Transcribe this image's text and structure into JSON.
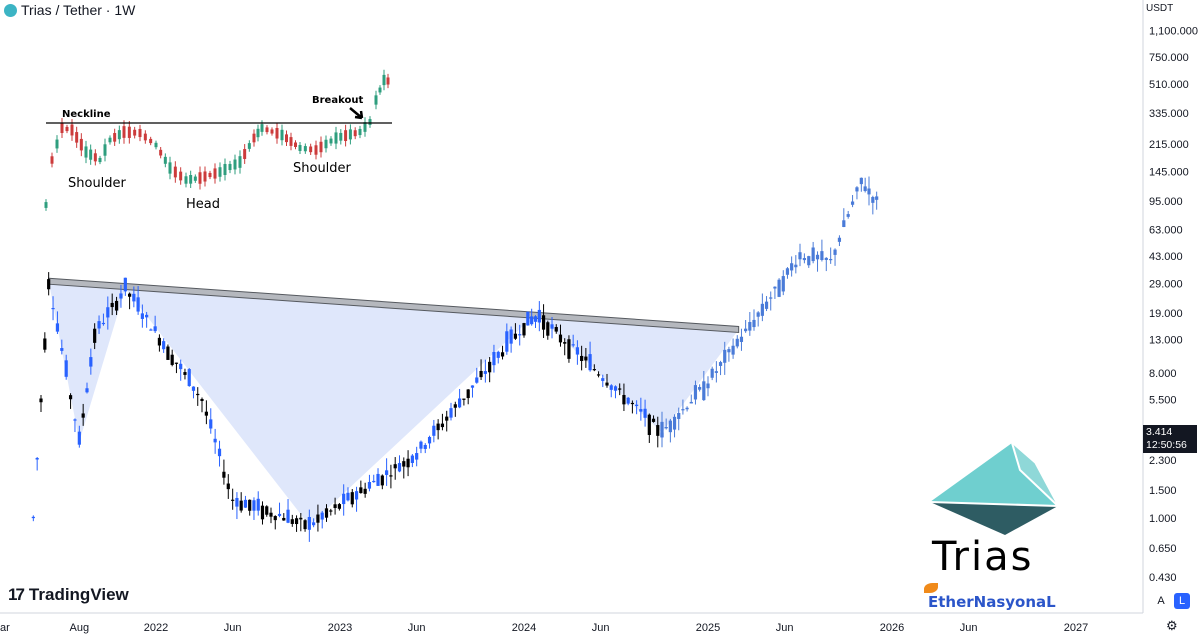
{
  "header": {
    "title": "Trias / Tether · 1W",
    "currency": "USDT"
  },
  "price_tag": {
    "price": "3.414",
    "countdown": "12:50:56"
  },
  "branding": {
    "tradingview": "TradingView",
    "trias": "Trias",
    "ethernasyonal": "EtherNasyonaL",
    "trias_logo_colors": [
      "#6fcfcf",
      "#2e5c63",
      "#8fd8d8"
    ]
  },
  "buttons": {
    "auto": "A",
    "log": "L"
  },
  "colors": {
    "bull": "#2962ff",
    "bear": "#000000",
    "projection": "#4a7bd8",
    "fill": "#dfe7fb",
    "neckline": "#8a8f99",
    "inset_bull": "#2e9e7e",
    "inset_bear": "#cc3b3b"
  },
  "inset": {
    "labels": {
      "neckline": "Neckline",
      "breakout": "Breakout",
      "shoulder_left": "Shoulder",
      "head": "Head",
      "shoulder_right": "Shoulder"
    }
  },
  "chart_data": {
    "type": "candlestick",
    "title": "Trias / Tether · 1W",
    "scale": "log",
    "y_ticks": [
      "1,100.000",
      "750.000",
      "510.000",
      "335.000",
      "215.000",
      "145.000",
      "95.000",
      "63.000",
      "43.000",
      "29.000",
      "19.000",
      "13.000",
      "8.000",
      "5.500",
      "3.414",
      "2.300",
      "1.500",
      "1.000",
      "0.650",
      "0.430"
    ],
    "x_ticks": [
      "ar",
      "Aug",
      "2022",
      "Jun",
      "2023",
      "Jun",
      "2024",
      "Jun",
      "2025",
      "Jun",
      "2026",
      "Jun",
      "2027"
    ],
    "pattern": "inverse head and shoulders",
    "historical_path": [
      {
        "date": "2021-05",
        "price": 1.0
      },
      {
        "date": "2021-06",
        "price": 30.0
      },
      {
        "date": "2021-08",
        "price": 3.0
      },
      {
        "date": "2021-09",
        "price": 14.0
      },
      {
        "date": "2021-11",
        "price": 27.0
      },
      {
        "date": "2022-04",
        "price": 5.5
      },
      {
        "date": "2022-06",
        "price": 1.3
      },
      {
        "date": "2022-11",
        "price": 0.9
      },
      {
        "date": "2023-06",
        "price": 2.5
      },
      {
        "date": "2024-01",
        "price": 16.0
      },
      {
        "date": "2024-02",
        "price": 18.0
      },
      {
        "date": "2024-10",
        "price": 3.414
      }
    ],
    "projection_path": [
      {
        "date": "2024-10",
        "price": 3.414
      },
      {
        "date": "2025-01",
        "price": 7.0
      },
      {
        "date": "2025-04",
        "price": 17.0
      },
      {
        "date": "2025-07",
        "price": 43.0
      },
      {
        "date": "2025-09",
        "price": 40.0
      },
      {
        "date": "2025-11",
        "price": 125.0
      },
      {
        "date": "2025-12",
        "price": 95.0
      }
    ],
    "neckline": [
      {
        "date": "2021-06",
        "price": 30.0
      },
      {
        "date": "2025-03",
        "price": 15.0
      }
    ]
  }
}
